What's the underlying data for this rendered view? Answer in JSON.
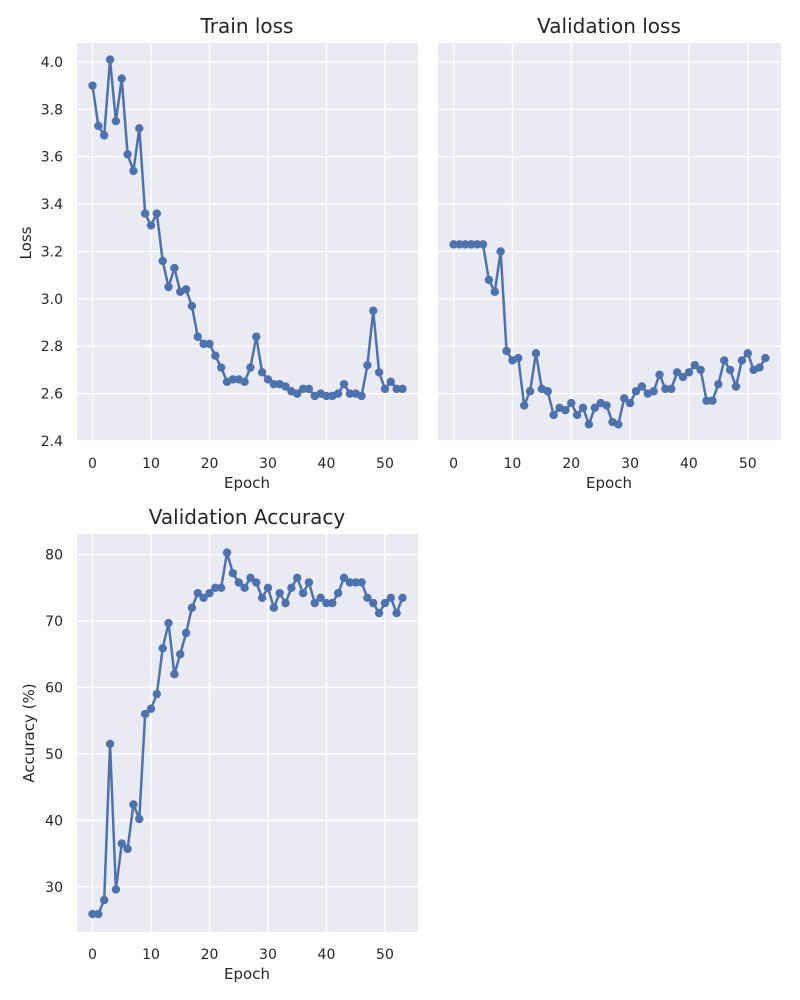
{
  "chart_data": [
    {
      "type": "line",
      "title": "Train loss",
      "xlabel": "Epoch",
      "ylabel": "Loss",
      "xlim": [
        -2.65,
        55.65
      ],
      "ylim": [
        2.4,
        4.08
      ],
      "xticks": [
        0,
        10,
        20,
        30,
        40,
        50
      ],
      "yticks": [
        2.4,
        2.6,
        2.8,
        3.0,
        3.2,
        3.4,
        3.6,
        3.8,
        4.0
      ],
      "ytick_labels": [
        "2.4",
        "2.6",
        "2.8",
        "3.0",
        "3.2",
        "3.4",
        "3.6",
        "3.8",
        "4.0"
      ],
      "grid": true,
      "color": "#4c72b0",
      "background": "#eaeaf2",
      "x": [
        0,
        1,
        2,
        3,
        4,
        5,
        6,
        7,
        8,
        9,
        10,
        11,
        12,
        13,
        14,
        15,
        16,
        17,
        18,
        19,
        20,
        21,
        22,
        23,
        24,
        25,
        26,
        27,
        28,
        29,
        30,
        31,
        32,
        33,
        34,
        35,
        36,
        37,
        38,
        39,
        40,
        41,
        42,
        43,
        44,
        45,
        46,
        47,
        48,
        49,
        50,
        51,
        52,
        53
      ],
      "values": [
        3.9,
        3.73,
        3.69,
        4.01,
        3.75,
        3.93,
        3.61,
        3.54,
        3.72,
        3.36,
        3.31,
        3.36,
        3.16,
        3.05,
        3.13,
        3.03,
        3.04,
        2.97,
        2.84,
        2.81,
        2.81,
        2.76,
        2.71,
        2.65,
        2.66,
        2.66,
        2.65,
        2.71,
        2.84,
        2.69,
        2.66,
        2.64,
        2.64,
        2.63,
        2.61,
        2.6,
        2.62,
        2.62,
        2.59,
        2.6,
        2.59,
        2.59,
        2.6,
        2.64,
        2.6,
        2.6,
        2.59,
        2.72,
        2.95,
        2.69,
        2.62,
        2.65,
        2.62,
        2.62
      ]
    },
    {
      "type": "line",
      "title": "Validation loss",
      "xlabel": "Epoch",
      "ylabel": "",
      "xlim": [
        -2.65,
        55.65
      ],
      "ylim": [
        2.4,
        4.08
      ],
      "xticks": [
        0,
        10,
        20,
        30,
        40,
        50
      ],
      "yticks": [
        2.4,
        2.6,
        2.8,
        3.0,
        3.2,
        3.4,
        3.6,
        3.8,
        4.0
      ],
      "ytick_labels": [],
      "grid": true,
      "color": "#4c72b0",
      "background": "#eaeaf2",
      "x": [
        0,
        1,
        2,
        3,
        4,
        5,
        6,
        7,
        8,
        9,
        10,
        11,
        12,
        13,
        14,
        15,
        16,
        17,
        18,
        19,
        20,
        21,
        22,
        23,
        24,
        25,
        26,
        27,
        28,
        29,
        30,
        31,
        32,
        33,
        34,
        35,
        36,
        37,
        38,
        39,
        40,
        41,
        42,
        43,
        44,
        45,
        46,
        47,
        48,
        49,
        50,
        51,
        52,
        53
      ],
      "values": [
        3.23,
        3.23,
        3.23,
        3.23,
        3.23,
        3.23,
        3.08,
        3.03,
        3.2,
        2.78,
        2.74,
        2.75,
        2.55,
        2.61,
        2.77,
        2.62,
        2.61,
        2.51,
        2.54,
        2.53,
        2.56,
        2.51,
        2.54,
        2.47,
        2.54,
        2.56,
        2.55,
        2.48,
        2.47,
        2.58,
        2.56,
        2.61,
        2.63,
        2.6,
        2.61,
        2.68,
        2.62,
        2.62,
        2.69,
        2.67,
        2.69,
        2.72,
        2.7,
        2.57,
        2.57,
        2.64,
        2.74,
        2.7,
        2.63,
        2.74,
        2.77,
        2.7,
        2.71,
        2.75
      ]
    },
    {
      "type": "line",
      "title": "Validation Accuracy",
      "xlabel": "Epoch",
      "ylabel": "Accuracy (%)",
      "xlim": [
        -2.65,
        55.65
      ],
      "ylim": [
        23.2,
        83.1
      ],
      "xticks": [
        0,
        10,
        20,
        30,
        40,
        50
      ],
      "yticks": [
        30,
        40,
        50,
        60,
        70,
        80
      ],
      "ytick_labels": [
        "30",
        "40",
        "50",
        "60",
        "70",
        "80"
      ],
      "grid": true,
      "color": "#4c72b0",
      "background": "#eaeaf2",
      "x": [
        0,
        1,
        2,
        3,
        4,
        5,
        6,
        7,
        8,
        9,
        10,
        11,
        12,
        13,
        14,
        15,
        16,
        17,
        18,
        19,
        20,
        21,
        22,
        23,
        24,
        25,
        26,
        27,
        28,
        29,
        30,
        31,
        32,
        33,
        34,
        35,
        36,
        37,
        38,
        39,
        40,
        41,
        42,
        43,
        44,
        45,
        46,
        47,
        48,
        49,
        50,
        51,
        52,
        53
      ],
      "values": [
        25.9,
        25.9,
        28.0,
        51.5,
        29.6,
        36.5,
        35.7,
        42.4,
        40.2,
        56.0,
        56.8,
        59.0,
        65.9,
        69.7,
        62.0,
        65.0,
        68.2,
        72.0,
        74.2,
        73.5,
        74.2,
        75.0,
        75.0,
        80.3,
        77.2,
        75.8,
        75.0,
        76.5,
        75.8,
        73.5,
        75.0,
        72.0,
        74.2,
        72.7,
        75.0,
        76.5,
        74.2,
        75.8,
        72.7,
        73.5,
        72.7,
        72.7,
        74.2,
        76.5,
        75.8,
        75.8,
        75.8,
        73.5,
        72.7,
        71.2,
        72.7,
        73.5,
        71.2,
        73.5
      ]
    }
  ]
}
